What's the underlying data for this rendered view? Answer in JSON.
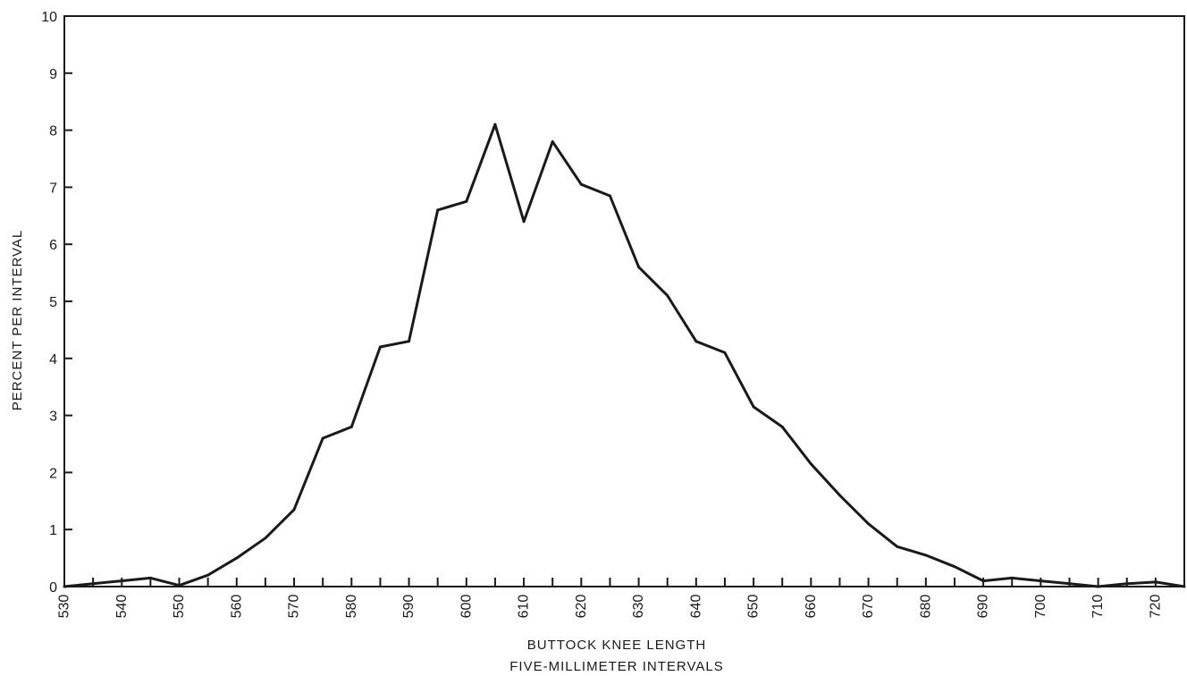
{
  "chart_data": {
    "type": "line",
    "title": "",
    "xlabel": "BUTTOCK KNEE LENGTH",
    "xlabel_sub": "FIVE-MILLIMETER INTERVALS",
    "ylabel": "PERCENT PER INTERVAL",
    "xlim": [
      530,
      725
    ],
    "ylim": [
      0,
      10
    ],
    "grid": false,
    "x_tick_labels": [
      "530",
      "540",
      "550",
      "560",
      "570",
      "580",
      "590",
      "600",
      "610",
      "620",
      "630",
      "640",
      "650",
      "660",
      "670",
      "680",
      "690",
      "700",
      "710",
      "720"
    ],
    "y_tick_labels": [
      "0",
      "1",
      "2",
      "3",
      "4",
      "5",
      "6",
      "7",
      "8",
      "9",
      "10"
    ],
    "series": [
      {
        "x": [
          530,
          535,
          540,
          545,
          550,
          555,
          560,
          565,
          570,
          575,
          580,
          585,
          590,
          595,
          600,
          605,
          610,
          615,
          620,
          625,
          630,
          635,
          640,
          645,
          650,
          655,
          660,
          665,
          670,
          675,
          680,
          685,
          690,
          695,
          700,
          705,
          710,
          715,
          720,
          725
        ],
        "values": [
          0,
          0.05,
          0.1,
          0.15,
          0.02,
          0.2,
          0.5,
          0.85,
          1.35,
          2.6,
          2.8,
          4.2,
          4.3,
          6.6,
          6.75,
          8.1,
          6.4,
          7.8,
          7.05,
          6.85,
          5.6,
          5.1,
          4.3,
          4.1,
          3.15,
          2.8,
          2.15,
          1.6,
          1.1,
          0.7,
          0.55,
          0.35,
          0.1,
          0.15,
          0.1,
          0.05,
          0,
          0.05,
          0.08,
          0
        ]
      }
    ]
  }
}
